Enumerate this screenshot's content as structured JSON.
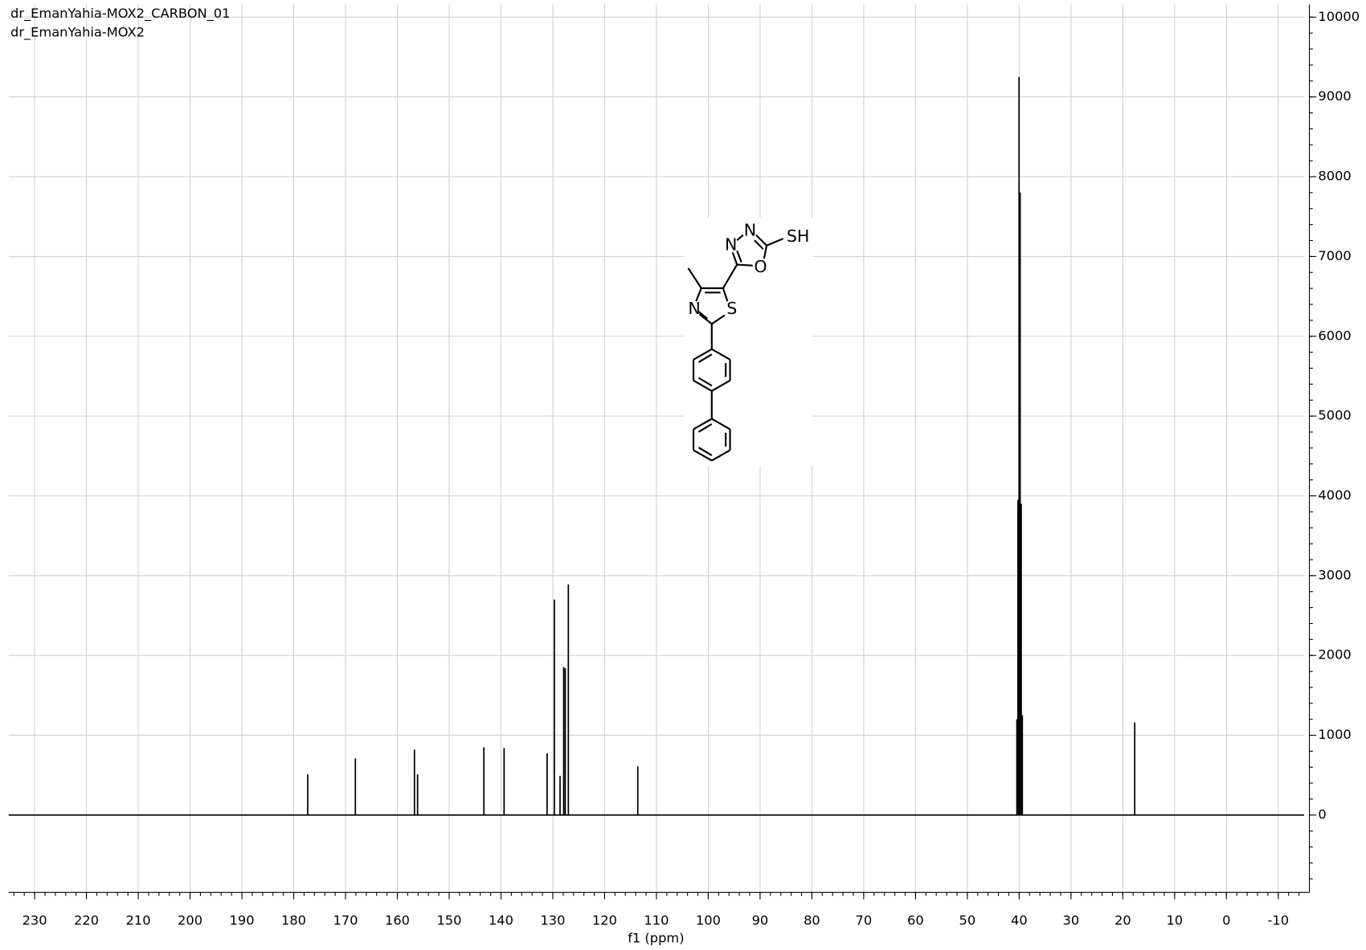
{
  "chart_data": {
    "type": "spectrum",
    "title": "dr_EmanYahia-MOX2_CARBON_01",
    "subtitle": "dr_EmanYahia-MOX2",
    "x_label": "f1 (ppm)",
    "x": [
      177.3,
      168.1,
      156.7,
      156.1,
      143.3,
      139.4,
      131.1,
      129.7,
      128.6,
      127.9,
      127.6,
      127.0,
      113.6,
      40.44,
      40.23,
      40.02,
      39.81,
      39.6,
      39.39,
      17.7
    ],
    "values": [
      510,
      710,
      820,
      510,
      850,
      840,
      775,
      2700,
      490,
      1855,
      1840,
      2890,
      610,
      1200,
      3950,
      9250,
      7800,
      3900,
      1250,
      1160
    ],
    "color": "#000000",
    "xlim": [
      235,
      -15
    ],
    "ylim": [
      -970,
      10160
    ],
    "xticks": [
      230,
      220,
      210,
      200,
      190,
      180,
      170,
      160,
      150,
      140,
      130,
      120,
      110,
      100,
      90,
      80,
      70,
      60,
      50,
      40,
      30,
      20,
      10,
      0,
      -10
    ],
    "yticks": [
      0,
      1000,
      2000,
      3000,
      4000,
      5000,
      6000,
      7000,
      8000,
      9000,
      10000
    ],
    "grid": true,
    "structure_labels": [
      "N",
      "N",
      "SH",
      "O",
      "N",
      "S"
    ]
  }
}
